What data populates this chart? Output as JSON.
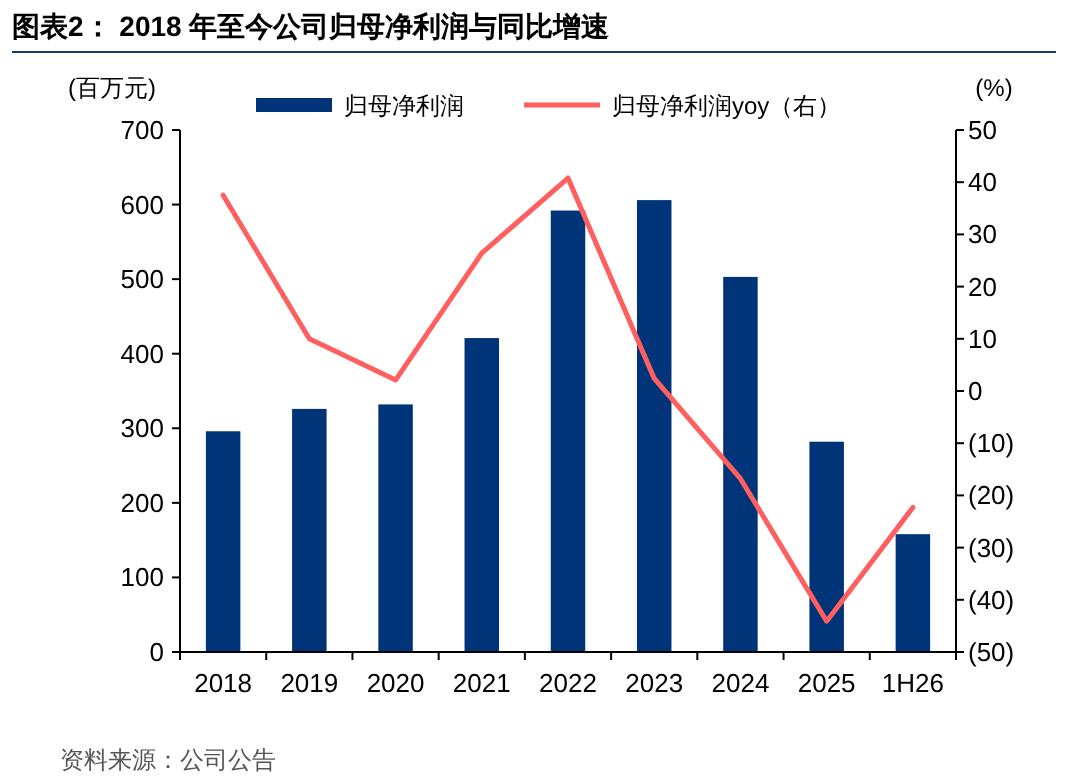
{
  "chart_data": {
    "type": "bar",
    "title": "图表2：  2018 年至今公司归母净利润与同比增速",
    "ylabel": "(百万元)",
    "y2label": "(%)",
    "annotations": [
      "资料来源：公司公告"
    ],
    "categories": [
      "2018",
      "2019",
      "2020",
      "2021",
      "2022",
      "2023",
      "2024",
      "2025",
      "1H26"
    ],
    "series": [
      {
        "name": "归母净利润",
        "color": "#003478",
        "values": [
          296,
          326,
          332,
          421,
          592,
          606,
          503,
          282,
          158
        ]
      },
      {
        "name": "归母净利润yoy（右）",
        "type": "line",
        "axis": "y2",
        "color": "#ff5f5f",
        "values": [
          37.5,
          10,
          2.1,
          26.4,
          40.8,
          2.4,
          -16.8,
          -44.1,
          -22.3
        ]
      }
    ],
    "ylim": [
      0,
      700
    ],
    "yticks": [
      0,
      100,
      200,
      300,
      400,
      500,
      600,
      700
    ],
    "y2lim": [
      -50,
      50
    ],
    "y2ticks": [
      {
        "value": -50,
        "label": "(50)"
      },
      {
        "value": -40,
        "label": "(40)"
      },
      {
        "value": -30,
        "label": "(30)"
      },
      {
        "value": -20,
        "label": "(20)"
      },
      {
        "value": -10,
        "label": "(10)"
      },
      0,
      10,
      20,
      30,
      40,
      50
    ],
    "legend": "top",
    "grid": false
  }
}
